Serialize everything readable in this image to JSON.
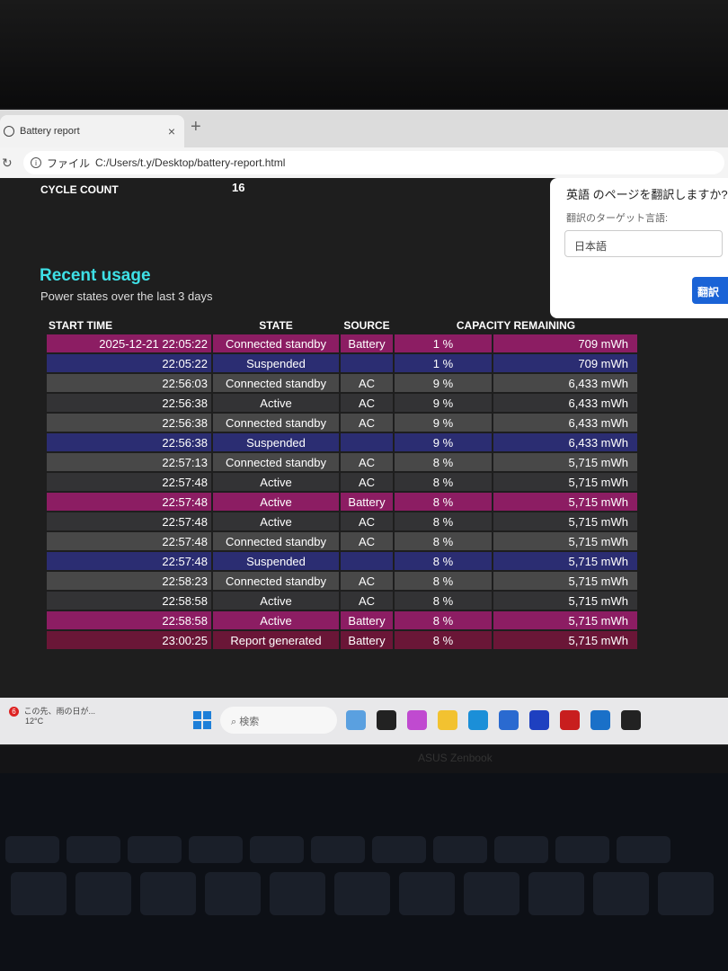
{
  "browser": {
    "tab_title": "Battery report",
    "address_prefix": "ファイル",
    "url": "C:/Users/t.y/Desktop/battery-report.html"
  },
  "report": {
    "cycle_count_label": "CYCLE COUNT",
    "cycle_count_value": "16",
    "section_title": "Recent usage",
    "section_subtitle": "Power states over the last 3 days",
    "columns": [
      "START TIME",
      "STATE",
      "SOURCE",
      "CAPACITY REMAINING"
    ],
    "rows": [
      {
        "time": "2025-12-21  22:05:22",
        "state": "Connected standby",
        "source": "Battery",
        "percent": "1 %",
        "capacity": "709 mWh",
        "kind": "battery"
      },
      {
        "time": "22:05:22",
        "state": "Suspended",
        "source": "",
        "percent": "1 %",
        "capacity": "709 mWh",
        "kind": "suspended"
      },
      {
        "time": "22:56:03",
        "state": "Connected standby",
        "source": "AC",
        "percent": "9 %",
        "capacity": "6,433 mWh",
        "kind": "ac"
      },
      {
        "time": "22:56:38",
        "state": "Active",
        "source": "AC",
        "percent": "9 %",
        "capacity": "6,433 mWh",
        "kind": "ac2"
      },
      {
        "time": "22:56:38",
        "state": "Connected standby",
        "source": "AC",
        "percent": "9 %",
        "capacity": "6,433 mWh",
        "kind": "ac"
      },
      {
        "time": "22:56:38",
        "state": "Suspended",
        "source": "",
        "percent": "9 %",
        "capacity": "6,433 mWh",
        "kind": "suspended"
      },
      {
        "time": "22:57:13",
        "state": "Connected standby",
        "source": "AC",
        "percent": "8 %",
        "capacity": "5,715 mWh",
        "kind": "ac"
      },
      {
        "time": "22:57:48",
        "state": "Active",
        "source": "AC",
        "percent": "8 %",
        "capacity": "5,715 mWh",
        "kind": "ac2"
      },
      {
        "time": "22:57:48",
        "state": "Active",
        "source": "Battery",
        "percent": "8 %",
        "capacity": "5,715 mWh",
        "kind": "battery"
      },
      {
        "time": "22:57:48",
        "state": "Active",
        "source": "AC",
        "percent": "8 %",
        "capacity": "5,715 mWh",
        "kind": "ac2"
      },
      {
        "time": "22:57:48",
        "state": "Connected standby",
        "source": "AC",
        "percent": "8 %",
        "capacity": "5,715 mWh",
        "kind": "ac"
      },
      {
        "time": "22:57:48",
        "state": "Suspended",
        "source": "",
        "percent": "8 %",
        "capacity": "5,715 mWh",
        "kind": "suspended"
      },
      {
        "time": "22:58:23",
        "state": "Connected standby",
        "source": "AC",
        "percent": "8 %",
        "capacity": "5,715 mWh",
        "kind": "ac"
      },
      {
        "time": "22:58:58",
        "state": "Active",
        "source": "AC",
        "percent": "8 %",
        "capacity": "5,715 mWh",
        "kind": "ac2"
      },
      {
        "time": "22:58:58",
        "state": "Active",
        "source": "Battery",
        "percent": "8 %",
        "capacity": "5,715 mWh",
        "kind": "battery"
      },
      {
        "time": "23:00:25",
        "state": "Report generated",
        "source": "Battery",
        "percent": "8 %",
        "capacity": "5,715 mWh",
        "kind": "report"
      }
    ]
  },
  "translate_popup": {
    "question": "英語 のページを翻訳しますか?",
    "target_label": "翻訳のターゲット言語:",
    "target_value": "日本語",
    "translate_button": "翻訳"
  },
  "taskbar": {
    "weather_badge": "6",
    "weather_text": "この先、雨の日が...",
    "temperature": "12°C",
    "search_placeholder": "検索",
    "apps": [
      "widgets-icon",
      "notes-icon",
      "copilot-icon",
      "file-explorer-icon",
      "edge-icon",
      "store-icon",
      "ia-icon",
      "mcafee-icon",
      "outlook-icon",
      "terminal-icon"
    ],
    "app_colors": [
      "#5aa0e0",
      "#222222",
      "#c04ad0",
      "#f2c230",
      "#1b8fd8",
      "#2a6ad0",
      "#1e40c0",
      "#c81e1e",
      "#1a70c8",
      "#222222"
    ]
  },
  "laptop": {
    "brand": "ASUS Zenbook"
  }
}
